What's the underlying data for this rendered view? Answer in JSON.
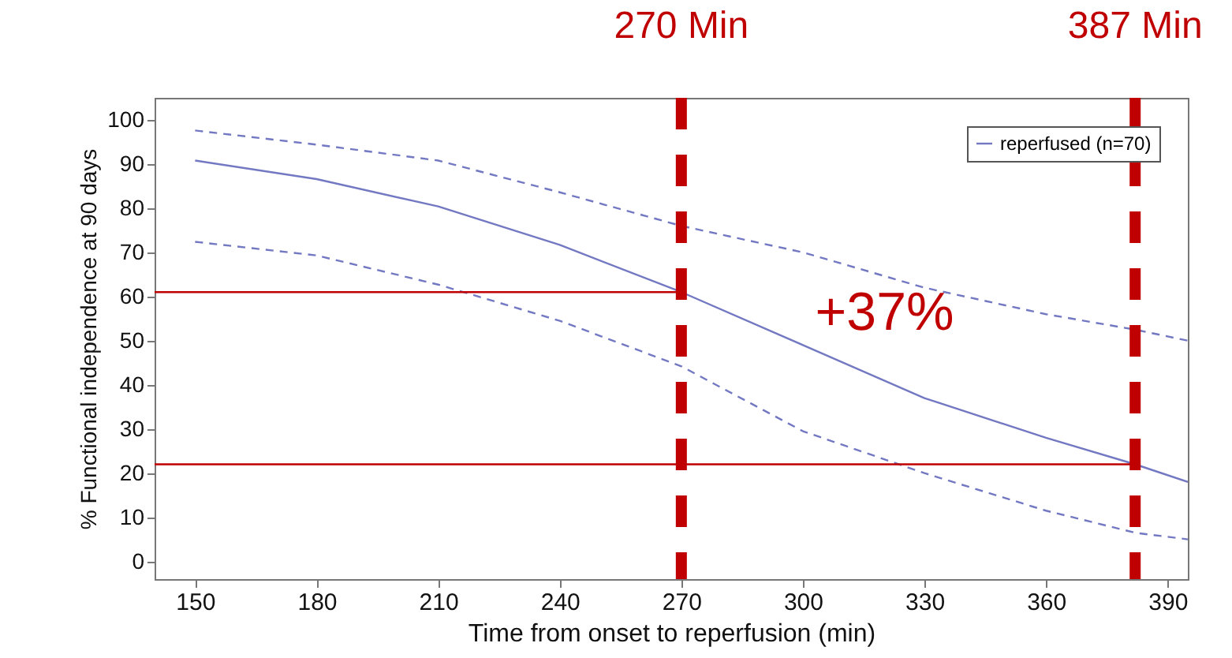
{
  "chart_data": {
    "type": "line",
    "xlabel": "Time from onset to reperfusion (min)",
    "ylabel": "% Functional independence at 90 days",
    "xlim": [
      140,
      395
    ],
    "xticks": [
      150,
      180,
      210,
      240,
      270,
      300,
      330,
      360,
      390
    ],
    "ylim": [
      -4,
      105
    ],
    "yticks": [
      0,
      10,
      20,
      30,
      40,
      50,
      60,
      70,
      80,
      90,
      100
    ],
    "grid": false,
    "legend": "top right",
    "line_style": "solid",
    "series": [
      {
        "name": "reperfused (n=70)",
        "color": "#7378c2",
        "x": [
          150,
          180,
          210,
          240,
          270,
          300,
          330,
          360,
          382,
          395
        ],
        "values": [
          90.8,
          86.6,
          80.4,
          71.7,
          61,
          49,
          37,
          28,
          22,
          18
        ]
      },
      {
        "color": "#7378c2",
        "line_style": "dashed",
        "x": [
          150,
          180,
          210,
          240,
          270,
          300,
          330,
          360,
          382,
          395
        ],
        "values": [
          97.6,
          94.4,
          90.8,
          83.6,
          76,
          70,
          62,
          56,
          52.5,
          50
        ]
      },
      {
        "color": "#7378c2",
        "line_style": "dashed",
        "x": [
          150,
          180,
          210,
          240,
          270,
          300,
          330,
          360,
          382,
          395
        ],
        "values": [
          72.4,
          69.3,
          62.7,
          54.5,
          44.2,
          29.5,
          20,
          11.5,
          6.5,
          5
        ]
      },
      {
        "color": "#c00000",
        "x": [
          140,
          270
        ],
        "values": [
          61,
          61
        ]
      },
      {
        "color": "#c00000",
        "x": [
          140,
          382
        ],
        "values": [
          22,
          22
        ]
      }
    ],
    "ref_lines": [
      {
        "axis": "x",
        "value": 270,
        "color": "#c00000",
        "line_style": "dashed"
      },
      {
        "axis": "x",
        "value": 382,
        "color": "#c00000",
        "line_style": "dashed"
      }
    ],
    "annotations": [
      "270 Min",
      "387 Min",
      "+37%"
    ]
  }
}
